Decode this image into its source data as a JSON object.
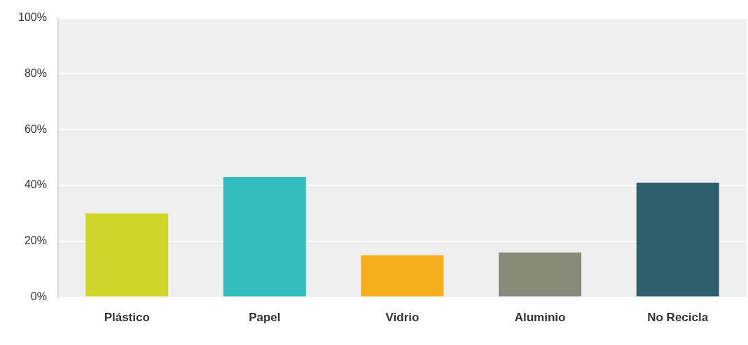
{
  "chart_data": {
    "type": "bar",
    "categories": [
      "Plástico",
      "Papel",
      "Vidrio",
      "Aluminio",
      "No Recicla"
    ],
    "values": [
      30,
      43,
      15,
      16,
      41
    ],
    "colors": [
      "#d0d32a",
      "#33bdbe",
      "#f5ae1e",
      "#888a78",
      "#2e5f6c"
    ],
    "ylim": [
      0,
      100
    ],
    "yticks": [
      {
        "value": 0,
        "label": "0%"
      },
      {
        "value": 20,
        "label": "20%"
      },
      {
        "value": 40,
        "label": "40%"
      },
      {
        "value": 60,
        "label": "60%"
      },
      {
        "value": 80,
        "label": "80%"
      },
      {
        "value": 100,
        "label": "100%"
      }
    ],
    "grid": "y",
    "legend": false
  }
}
